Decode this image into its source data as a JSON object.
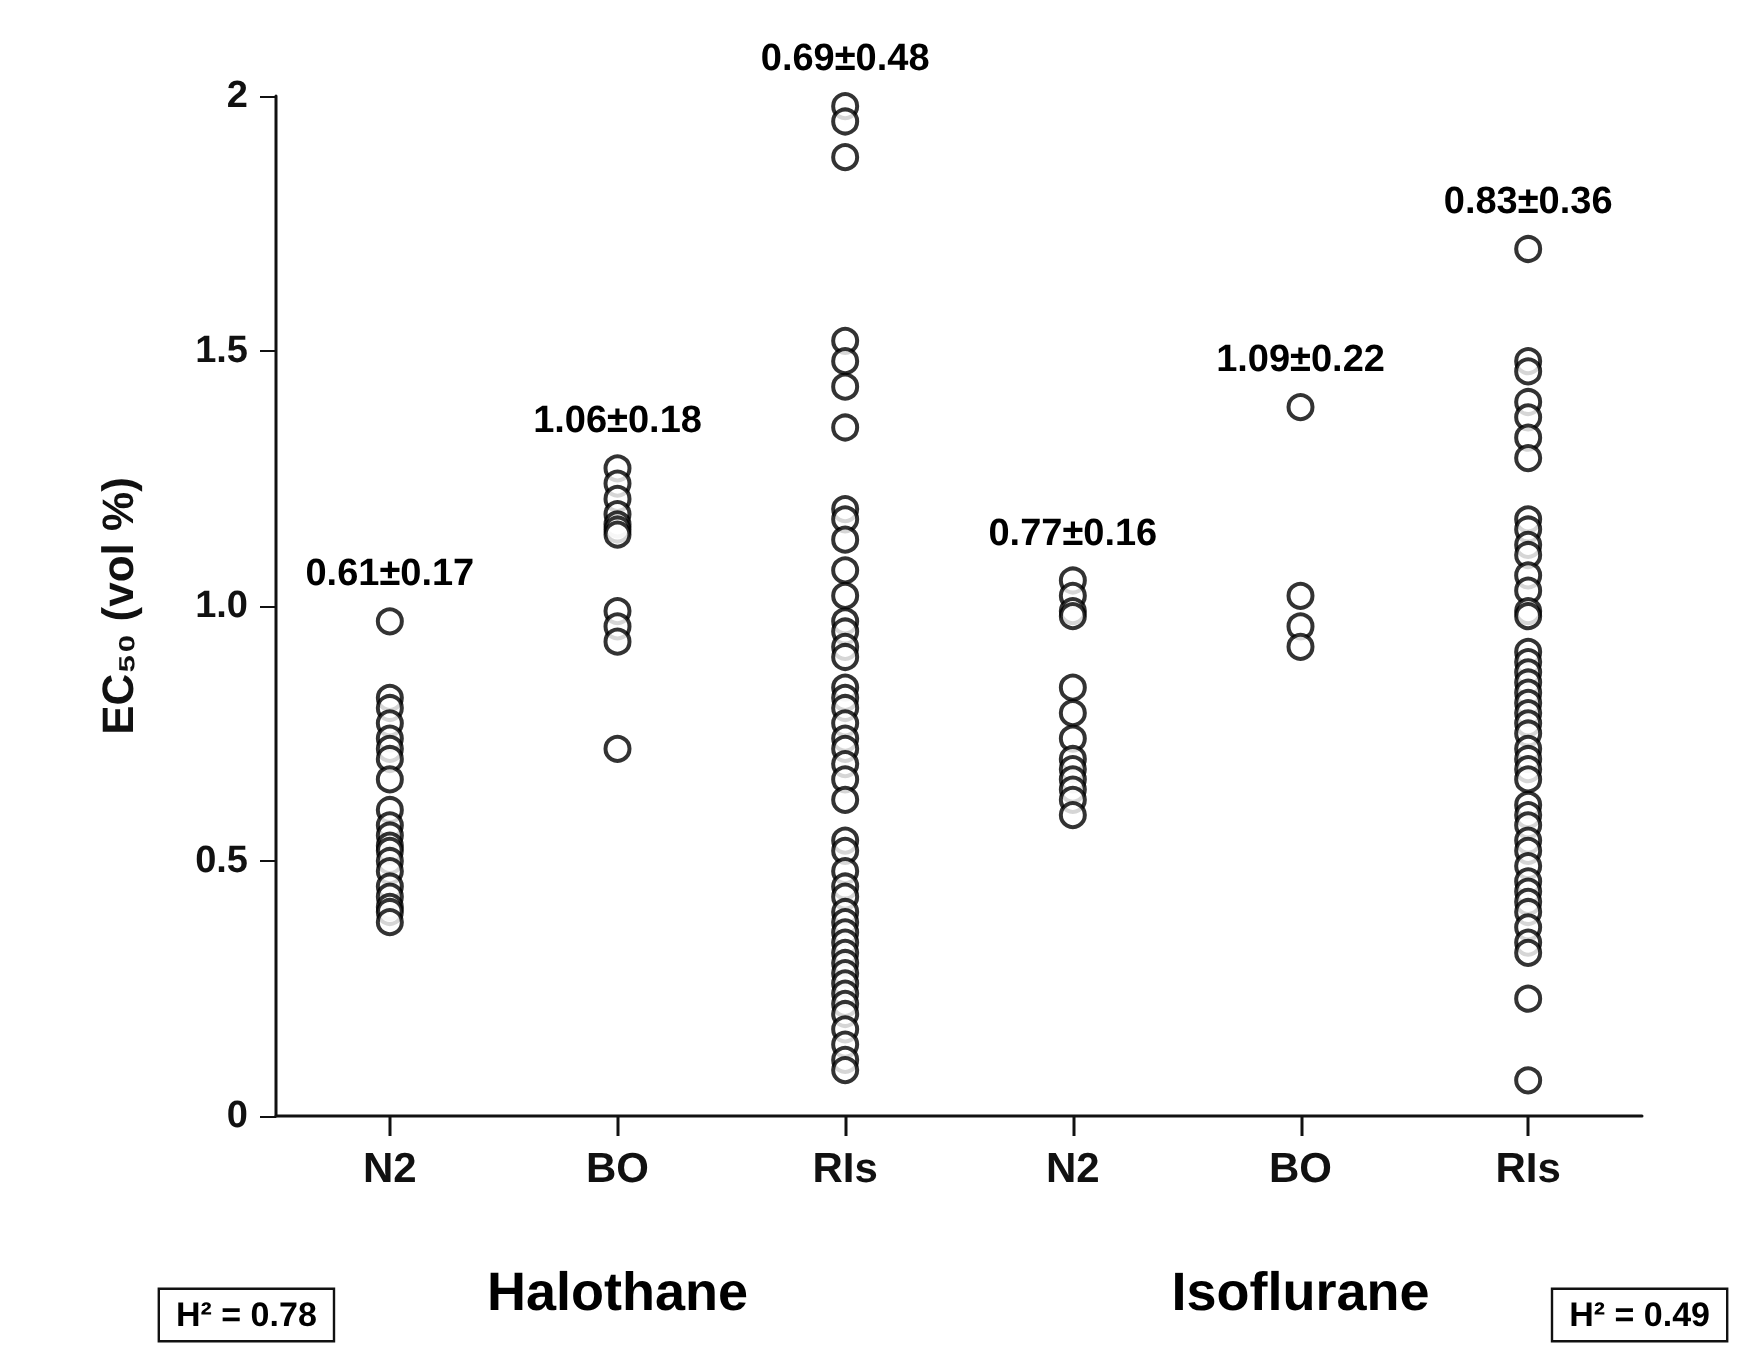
{
  "chart_data": {
    "type": "scatter",
    "ylabel": "EC₅₀ (vol %)",
    "categories": [
      "N2",
      "BO",
      "RIs",
      "N2",
      "BO",
      "RIs"
    ],
    "series": [
      {
        "color": "#000000",
        "values": [
          0.97,
          1.27,
          1.98,
          1.05,
          1.39,
          1.7
        ]
      },
      {
        "color": "#000000",
        "values": [
          0.82,
          1.24,
          1.95,
          1.02,
          1.02,
          1.48
        ]
      },
      {
        "color": "#000000",
        "values": [
          0.8,
          1.21,
          1.88,
          0.99,
          0.96,
          1.46
        ]
      },
      {
        "color": "#000000",
        "values": [
          0.77,
          1.18,
          1.52,
          0.98,
          0.92,
          1.4
        ]
      },
      {
        "color": "#000000",
        "values": [
          0.74,
          1.16,
          1.48,
          0.84,
          null,
          1.37
        ]
      },
      {
        "color": "#000000",
        "values": [
          0.72,
          1.15,
          1.43,
          0.79,
          null,
          1.33
        ]
      },
      {
        "color": "#000000",
        "values": [
          0.7,
          1.14,
          1.35,
          0.74,
          null,
          1.29
        ]
      },
      {
        "color": "#000000",
        "values": [
          0.66,
          0.99,
          1.19,
          0.7,
          null,
          1.17
        ]
      },
      {
        "color": "#000000",
        "values": [
          0.6,
          0.96,
          1.17,
          0.68,
          null,
          1.15
        ]
      },
      {
        "color": "#000000",
        "values": [
          0.57,
          0.93,
          1.13,
          0.66,
          null,
          1.12
        ]
      },
      {
        "color": "#000000",
        "values": [
          0.55,
          0.72,
          1.07,
          0.64,
          null,
          1.1
        ]
      },
      {
        "color": "#000000",
        "values": [
          0.53,
          null,
          1.02,
          0.62,
          null,
          1.06
        ]
      },
      {
        "color": "#000000",
        "values": [
          0.52,
          null,
          0.97,
          0.59,
          null,
          1.03
        ]
      },
      {
        "color": "#000000",
        "values": [
          0.5,
          null,
          0.95,
          null,
          null,
          0.99
        ]
      },
      {
        "color": "#000000",
        "values": [
          0.48,
          null,
          0.92,
          null,
          null,
          0.98
        ]
      },
      {
        "color": "#000000",
        "values": [
          0.45,
          null,
          0.9,
          null,
          null,
          0.91
        ]
      },
      {
        "color": "#000000",
        "values": [
          0.43,
          null,
          0.84,
          null,
          null,
          0.89
        ]
      },
      {
        "color": "#000000",
        "values": [
          0.41,
          null,
          0.82,
          null,
          null,
          0.87
        ]
      },
      {
        "color": "#000000",
        "values": [
          0.4,
          null,
          0.8,
          null,
          null,
          0.85
        ]
      },
      {
        "color": "#000000",
        "values": [
          0.38,
          null,
          0.77,
          null,
          null,
          0.83
        ]
      },
      {
        "color": "#000000",
        "values": [
          null,
          null,
          0.74,
          null,
          null,
          0.81
        ]
      },
      {
        "color": "#000000",
        "values": [
          null,
          null,
          0.72,
          null,
          null,
          0.79
        ]
      },
      {
        "color": "#000000",
        "values": [
          null,
          null,
          0.69,
          null,
          null,
          0.77
        ]
      },
      {
        "color": "#000000",
        "values": [
          null,
          null,
          0.66,
          null,
          null,
          0.75
        ]
      },
      {
        "color": "#000000",
        "values": [
          null,
          null,
          0.62,
          null,
          null,
          0.72
        ]
      },
      {
        "color": "#000000",
        "values": [
          null,
          null,
          0.54,
          null,
          null,
          0.7
        ]
      },
      {
        "color": "#000000",
        "values": [
          null,
          null,
          0.52,
          null,
          null,
          0.68
        ]
      },
      {
        "color": "#000000",
        "values": [
          null,
          null,
          0.48,
          null,
          null,
          0.66
        ]
      },
      {
        "color": "#000000",
        "values": [
          null,
          null,
          0.45,
          null,
          null,
          0.61
        ]
      },
      {
        "color": "#000000",
        "values": [
          null,
          null,
          0.43,
          null,
          null,
          0.59
        ]
      },
      {
        "color": "#000000",
        "values": [
          null,
          null,
          0.4,
          null,
          null,
          0.57
        ]
      },
      {
        "color": "#000000",
        "values": [
          null,
          null,
          0.38,
          null,
          null,
          0.54
        ]
      },
      {
        "color": "#000000",
        "values": [
          null,
          null,
          0.36,
          null,
          null,
          0.52
        ]
      },
      {
        "color": "#000000",
        "values": [
          null,
          null,
          0.34,
          null,
          null,
          0.49
        ]
      },
      {
        "color": "#000000",
        "values": [
          null,
          null,
          0.32,
          null,
          null,
          0.46
        ]
      },
      {
        "color": "#000000",
        "values": [
          null,
          null,
          0.3,
          null,
          null,
          0.44
        ]
      },
      {
        "color": "#000000",
        "values": [
          null,
          null,
          0.28,
          null,
          null,
          0.42
        ]
      },
      {
        "color": "#000000",
        "values": [
          null,
          null,
          0.26,
          null,
          null,
          0.4
        ]
      },
      {
        "color": "#000000",
        "values": [
          null,
          null,
          0.24,
          null,
          null,
          0.37
        ]
      },
      {
        "color": "#000000",
        "values": [
          null,
          null,
          0.22,
          null,
          null,
          0.34
        ]
      },
      {
        "color": "#000000",
        "values": [
          null,
          null,
          0.2,
          null,
          null,
          0.32
        ]
      },
      {
        "color": "#000000",
        "values": [
          null,
          null,
          0.17,
          null,
          null,
          0.23
        ]
      },
      {
        "color": "#000000",
        "values": [
          null,
          null,
          0.14,
          null,
          null,
          0.07
        ]
      },
      {
        "color": "#000000",
        "values": [
          null,
          null,
          0.11,
          null,
          null,
          null
        ]
      },
      {
        "color": "#000000",
        "values": [
          null,
          null,
          0.09,
          null,
          null,
          null
        ]
      }
    ],
    "ylim": [
      0,
      2
    ],
    "yticks": [
      0,
      0.5,
      {
        "value": 1,
        "label": "1.0"
      },
      1.5,
      2
    ],
    "marker": "circle",
    "grid": false,
    "annotations": [
      "0.61±0.17",
      "1.06±0.18",
      "0.69±0.48",
      "0.77±0.16",
      "1.09±0.22",
      "0.83±0.36",
      "Halothane",
      "Isoflurane",
      "H² = 0.78",
      "H² = 0.49"
    ]
  }
}
